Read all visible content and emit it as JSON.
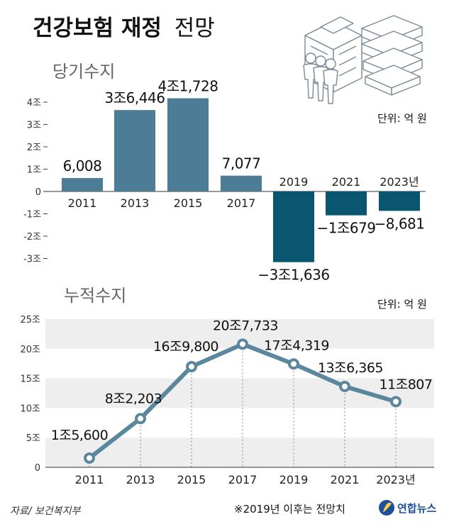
{
  "header": {
    "title_bold": "건강보험 재정",
    "title_light": "전망"
  },
  "footer": {
    "source": "자료/ 보건복지부",
    "note": "※2019년 이후는 전망치",
    "logo_text": "연합뉴스"
  },
  "colors": {
    "bar_actual": "#4d7d96",
    "bar_forecast": "#0a5670",
    "line": "#5b879d",
    "band": "#eeeeee"
  },
  "chart_data": [
    {
      "type": "bar",
      "title": "당기수지",
      "unit": "단위: 억 원",
      "categories": [
        "2011",
        "2013",
        "2015",
        "2017",
        "2019",
        "2021",
        "2023년"
      ],
      "values": [
        6008,
        36446,
        41728,
        7077,
        -31636,
        -10679,
        -8681
      ],
      "value_labels": [
        "6,008",
        "3조6,446",
        "4조1,728",
        "7,077",
        "−3조1,636",
        "−1조679",
        "−8,681"
      ],
      "forecast_from": "2019",
      "yticks": [
        40000,
        30000,
        20000,
        10000,
        0,
        -10000,
        -20000,
        -30000
      ],
      "ytick_labels": [
        "4조",
        "3조",
        "2조",
        "1조",
        "0",
        "-1조",
        "-2조",
        "-3조"
      ],
      "ylim": [
        -30000,
        40000
      ],
      "grid": false
    },
    {
      "type": "line",
      "title": "누적수지",
      "unit": "단위: 억 원",
      "categories": [
        "2011",
        "2013",
        "2015",
        "2017",
        "2019",
        "2021",
        "2023년"
      ],
      "values": [
        15600,
        82203,
        169800,
        207733,
        174319,
        136365,
        110807
      ],
      "value_labels": [
        "1조5,600",
        "8조2,203",
        "16조9,800",
        "20조7,733",
        "17조4,319",
        "13조6,365",
        "11조807"
      ],
      "yticks": [
        250000,
        200000,
        150000,
        100000,
        50000,
        0
      ],
      "ytick_labels": [
        "25조",
        "20조",
        "15조",
        "10조",
        "5조",
        "0"
      ],
      "ylim": [
        0,
        250000
      ],
      "grid": "alternating-bands"
    }
  ]
}
